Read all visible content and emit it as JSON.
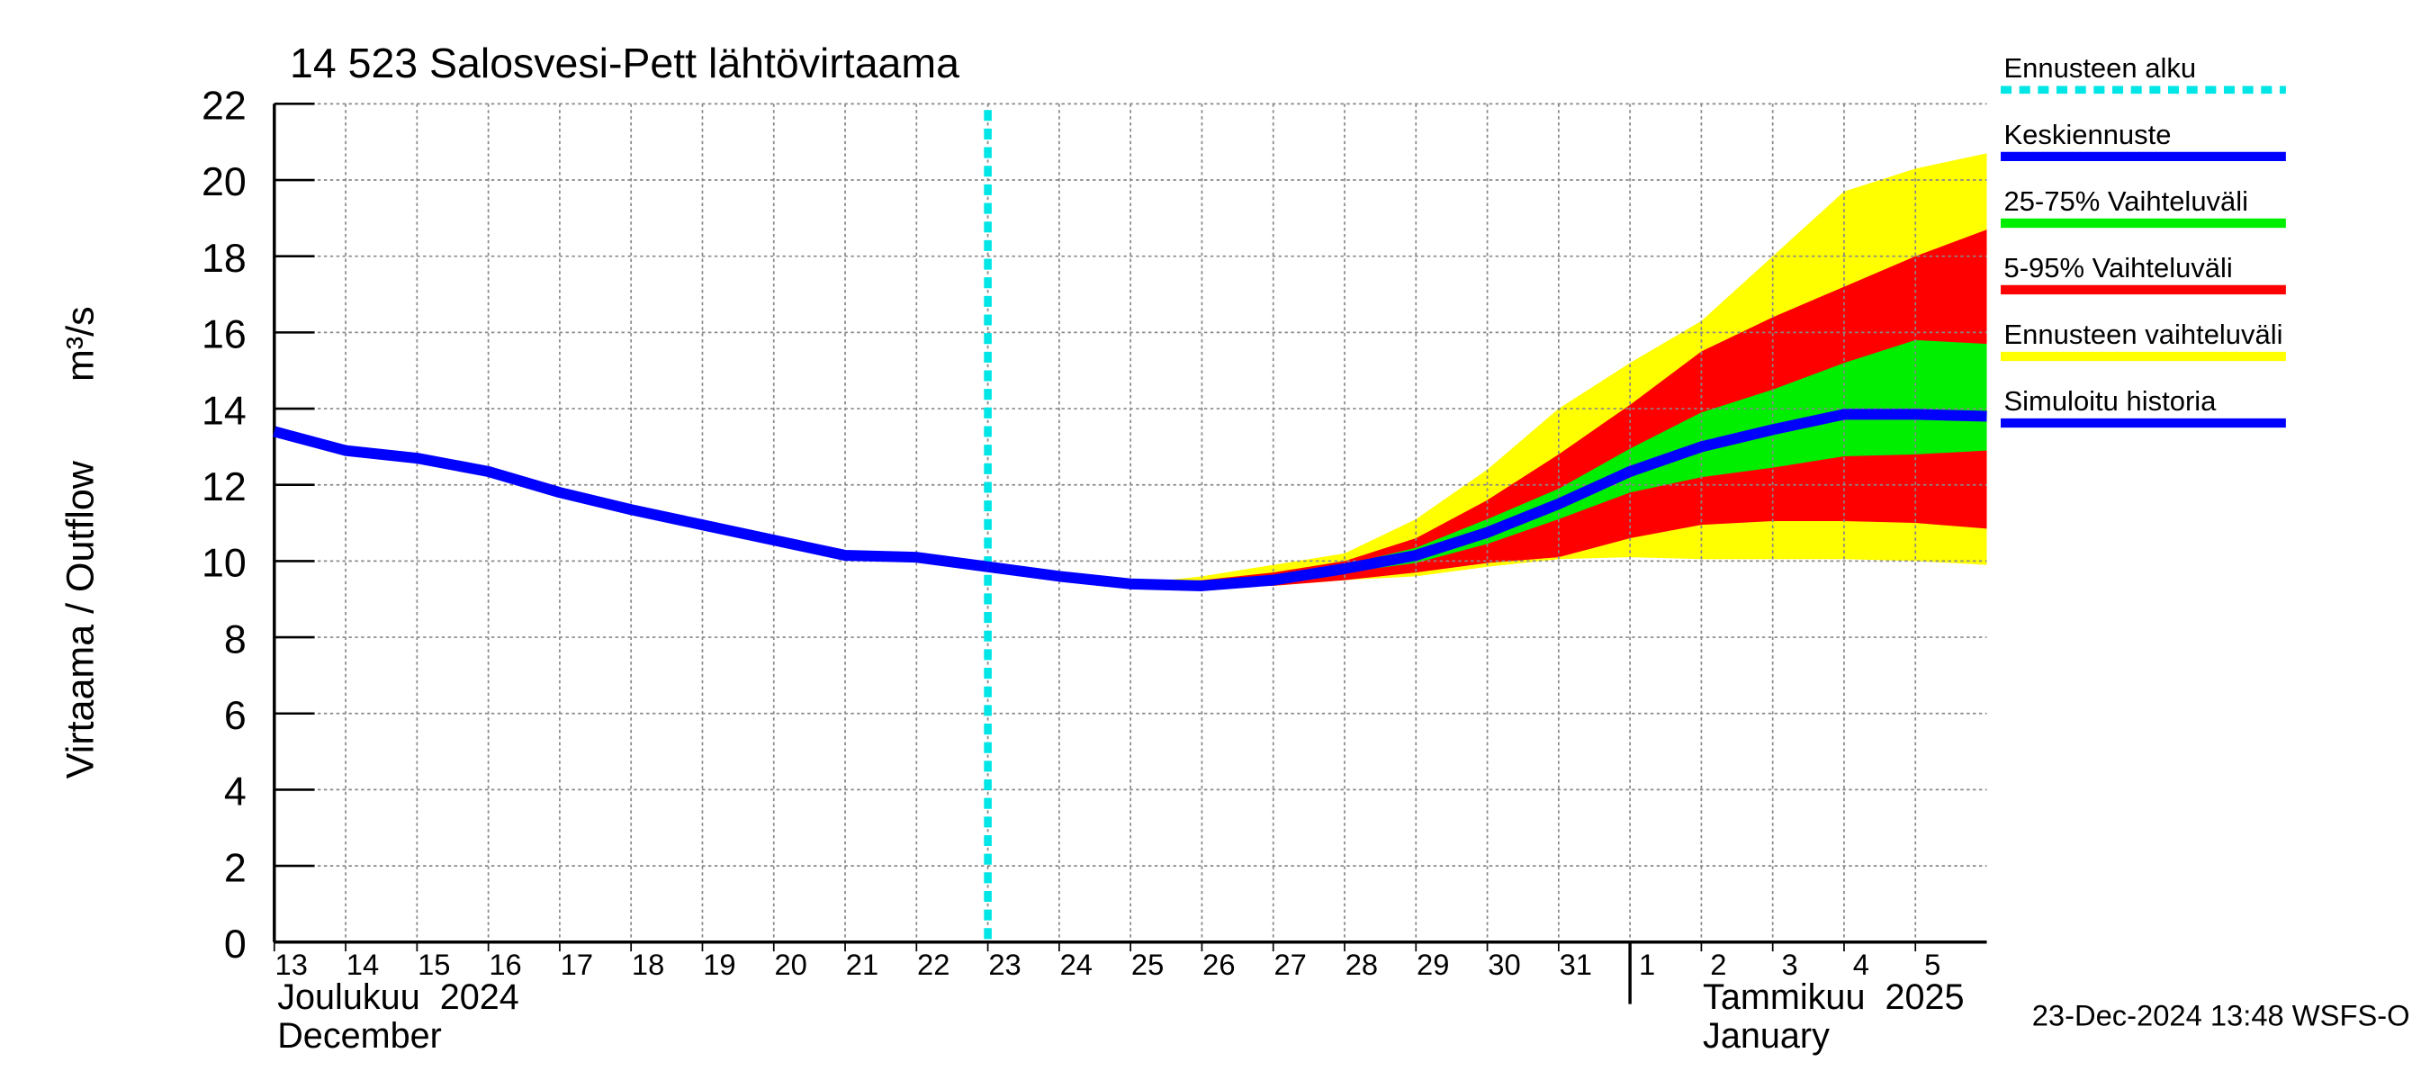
{
  "chart_data": {
    "type": "line",
    "title": "14 523 Salosvesi-Pett lähtövirtaama",
    "ylabel": "Virtaama / Outflow",
    "yunit": "m³/s",
    "x": [
      "2024-12-13",
      "2024-12-14",
      "2024-12-15",
      "2024-12-16",
      "2024-12-17",
      "2024-12-18",
      "2024-12-19",
      "2024-12-20",
      "2024-12-21",
      "2024-12-22",
      "2024-12-23",
      "2024-12-24",
      "2024-12-25",
      "2024-12-26",
      "2024-12-27",
      "2024-12-28",
      "2024-12-29",
      "2024-12-30",
      "2024-12-31",
      "2025-01-01",
      "2025-01-02",
      "2025-01-03",
      "2025-01-04",
      "2025-01-05",
      "2025-01-06"
    ],
    "xticks": [
      {
        "value": "2024-12-13",
        "label": "13"
      },
      {
        "value": "2024-12-14",
        "label": "14"
      },
      {
        "value": "2024-12-15",
        "label": "15"
      },
      {
        "value": "2024-12-16",
        "label": "16"
      },
      {
        "value": "2024-12-17",
        "label": "17"
      },
      {
        "value": "2024-12-18",
        "label": "18"
      },
      {
        "value": "2024-12-19",
        "label": "19"
      },
      {
        "value": "2024-12-20",
        "label": "20"
      },
      {
        "value": "2024-12-21",
        "label": "21"
      },
      {
        "value": "2024-12-22",
        "label": "22"
      },
      {
        "value": "2024-12-23",
        "label": "23"
      },
      {
        "value": "2024-12-24",
        "label": "24"
      },
      {
        "value": "2024-12-25",
        "label": "25"
      },
      {
        "value": "2024-12-26",
        "label": "26"
      },
      {
        "value": "2024-12-27",
        "label": "27"
      },
      {
        "value": "2024-12-28",
        "label": "28"
      },
      {
        "value": "2024-12-29",
        "label": "29"
      },
      {
        "value": "2024-12-30",
        "label": "30"
      },
      {
        "value": "2024-12-31",
        "label": "31"
      },
      {
        "value": "2025-01-01",
        "label": "1"
      },
      {
        "value": "2025-01-02",
        "label": "2"
      },
      {
        "value": "2025-01-03",
        "label": "3"
      },
      {
        "value": "2025-01-04",
        "label": "4"
      },
      {
        "value": "2025-01-05",
        "label": "5"
      }
    ],
    "xlim": [
      "2024-12-13",
      "2025-01-06"
    ],
    "months": [
      {
        "at": "2024-12-13",
        "label": "Joulukuu  2024",
        "label_en": "December"
      },
      {
        "at": "2025-01-01",
        "label": "Tammikuu  2025",
        "label_en": "January"
      }
    ],
    "ylim": [
      0,
      22
    ],
    "yticks": [
      0,
      2,
      4,
      6,
      8,
      10,
      12,
      14,
      16,
      18,
      20,
      22
    ],
    "grid": true,
    "forecast_start": {
      "x": "2024-12-23",
      "name": "Ennusteen alku",
      "color": "#00e5e5"
    },
    "bands": [
      {
        "name": "Ennusteen vaihteluväli",
        "color": "#ffff00",
        "low": [
          null,
          null,
          null,
          null,
          null,
          null,
          null,
          null,
          null,
          null,
          null,
          null,
          9.4,
          9.3,
          9.35,
          9.5,
          9.6,
          9.85,
          10.05,
          10.1,
          10.05,
          10.05,
          10.05,
          10.0,
          9.9
        ],
        "high": [
          null,
          null,
          null,
          null,
          null,
          null,
          null,
          null,
          null,
          null,
          null,
          null,
          9.4,
          9.6,
          9.9,
          10.2,
          11.1,
          12.4,
          14.0,
          15.2,
          16.3,
          18.0,
          19.7,
          20.3,
          20.7
        ]
      },
      {
        "name": "5-95% Vaihteluväli",
        "color": "#ff0000",
        "low": [
          null,
          null,
          null,
          null,
          null,
          null,
          null,
          null,
          null,
          null,
          null,
          null,
          9.4,
          9.3,
          9.35,
          9.5,
          9.7,
          9.95,
          10.1,
          10.6,
          10.95,
          11.05,
          11.05,
          11.0,
          10.85
        ],
        "high": [
          null,
          null,
          null,
          null,
          null,
          null,
          null,
          null,
          null,
          null,
          null,
          null,
          9.4,
          9.5,
          9.7,
          10.0,
          10.6,
          11.6,
          12.8,
          14.1,
          15.5,
          16.4,
          17.2,
          18.0,
          18.7
        ]
      },
      {
        "name": "25-75% Vaihteluväli",
        "color": "#00ee00",
        "low": [
          null,
          null,
          null,
          null,
          null,
          null,
          null,
          null,
          null,
          null,
          null,
          null,
          9.4,
          9.3,
          9.4,
          9.7,
          9.95,
          10.45,
          11.1,
          11.8,
          12.2,
          12.45,
          12.75,
          12.8,
          12.9
        ],
        "high": [
          null,
          null,
          null,
          null,
          null,
          null,
          null,
          null,
          null,
          null,
          null,
          null,
          9.4,
          9.4,
          9.6,
          9.9,
          10.35,
          11.1,
          11.9,
          12.95,
          13.9,
          14.5,
          15.2,
          15.8,
          15.7
        ]
      }
    ],
    "series": [
      {
        "name": "Keskiennuste",
        "color": "#0000ff",
        "values": [
          null,
          null,
          null,
          null,
          null,
          null,
          null,
          null,
          null,
          null,
          9.85,
          9.6,
          9.4,
          9.35,
          9.5,
          9.8,
          10.15,
          10.75,
          11.5,
          12.35,
          13.0,
          13.45,
          13.85,
          13.85,
          13.8
        ]
      },
      {
        "name": "Simuloitu historia",
        "color": "#0000ff",
        "values": [
          13.4,
          12.9,
          12.7,
          12.35,
          11.8,
          11.35,
          10.95,
          10.55,
          10.15,
          10.1,
          9.85,
          null,
          null,
          null,
          null,
          null,
          null,
          null,
          null,
          null,
          null,
          null,
          null,
          null,
          null
        ]
      }
    ],
    "legend_order": [
      "forecast_start",
      "series.0",
      "bands.2",
      "bands.1",
      "bands.0",
      "series.1"
    ],
    "footer": "23-Dec-2024 13:48 WSFS-O"
  }
}
